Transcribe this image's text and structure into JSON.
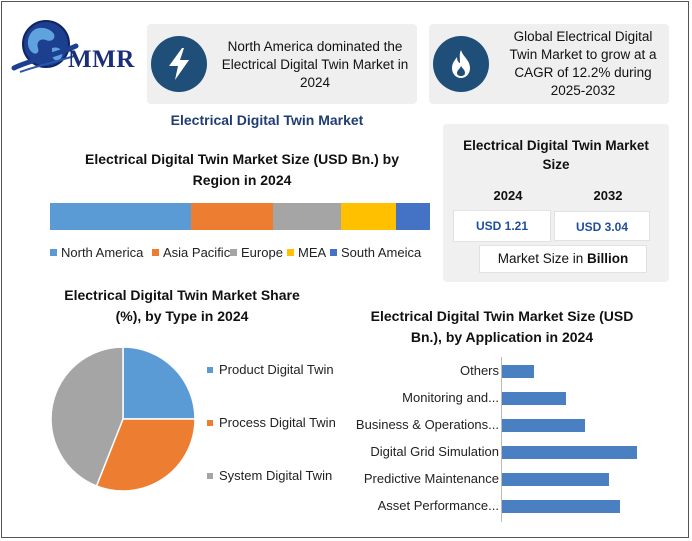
{
  "logo": {
    "text": "MMR"
  },
  "cards": [
    {
      "icon": "lightning-icon",
      "text_lines": [
        "North America dominated the",
        "Electrical Digital Twin Market in",
        "2024"
      ]
    },
    {
      "icon": "flame-icon",
      "text_lines": [
        "Global Electrical Digital",
        "Twin Market to grow at a",
        "CAGR of 12.2% during",
        "2025-2032"
      ]
    }
  ],
  "main_title": "Electrical Digital Twin Market",
  "size_panel": {
    "title_lines": [
      "Electrical Digital Twin Market",
      "Size"
    ],
    "year1": "2024",
    "year2": "2032",
    "value1": "USD 1.21",
    "value2": "USD 3.04",
    "footer_prefix": "Market Size in ",
    "footer_bold": "Billion"
  },
  "colors": {
    "north_america": "#5b9bd5",
    "asia_pacific": "#ed7d31",
    "europe": "#a5a5a5",
    "mea": "#ffc000",
    "south_america": "#4472c4",
    "bar_blue": "#4a7fc1",
    "icon_circle": "#1f4e79"
  },
  "chart_data": [
    {
      "type": "bar",
      "stacked": true,
      "orientation": "horizontal",
      "title_lines": [
        "Electrical Digital Twin Market Size (USD Bn.) by",
        "Region in 2024"
      ],
      "series": [
        {
          "name": "North America",
          "values": [
            36.6
          ]
        },
        {
          "name": "Asia Pacific",
          "values": [
            21.4
          ]
        },
        {
          "name": "Europe",
          "values": [
            17.7
          ]
        },
        {
          "name": "MEA",
          "values": [
            14.2
          ]
        },
        {
          "name": "South Ameica",
          "values": [
            8.8
          ]
        }
      ],
      "legend": "bottom"
    },
    {
      "type": "pie",
      "title_lines": [
        "Electrical Digital Twin Market Share",
        "(%), by Type in 2024"
      ],
      "labels": [
        "Product Digital Twin",
        "Process Digital Twin",
        "System Digital Twin"
      ],
      "values": [
        25,
        31,
        44
      ],
      "colors": [
        "#5b9bd5",
        "#ed7d31",
        "#a5a5a5"
      ],
      "legend": "right"
    },
    {
      "type": "bar",
      "orientation": "horizontal",
      "title_lines": [
        "Electrical Digital Twin Market Size (USD",
        "Bn.), by Application in 2024"
      ],
      "categories": [
        "Others",
        "Monitoring and...",
        "Business & Operations...",
        "Digital Grid Simulation",
        "Predictive Maintenance",
        "Asset Performance..."
      ],
      "values": [
        0.086,
        0.17,
        0.22,
        0.36,
        0.285,
        0.315
      ],
      "xlim": [
        0,
        0.4
      ]
    }
  ]
}
